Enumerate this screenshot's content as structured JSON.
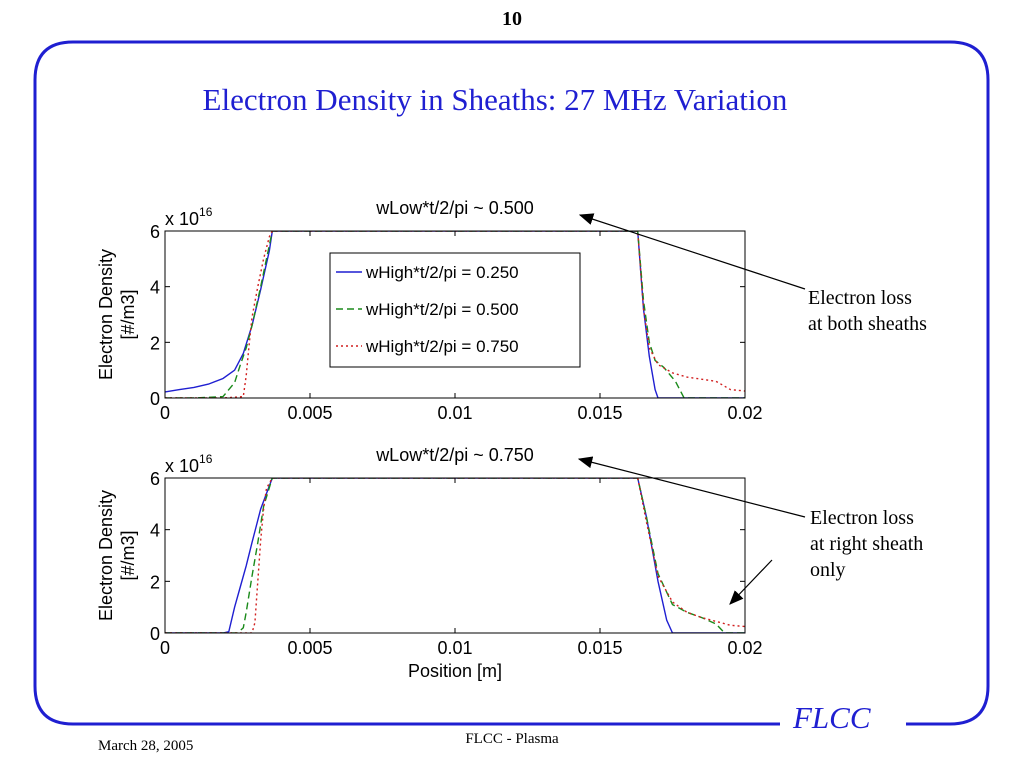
{
  "slide": {
    "page_number": "10",
    "title": "Electron Density in Sheaths: 27 MHz Variation",
    "footer_date": "March 28, 2005",
    "footer_center": "FLCC - Plasma",
    "brand": "FLCC",
    "frame_color": "#1f1fd1",
    "annotations": {
      "top_line1": "Electron loss",
      "top_line2": "at both sheaths",
      "bottom_line1": "Electron loss",
      "bottom_line2": "at right sheath",
      "bottom_line3": "only"
    }
  },
  "chart_data": [
    {
      "type": "line",
      "title": "wLow*t/2/pi ~ 0.500",
      "xlabel": "",
      "ylabel": "Electron Density [#/m3]",
      "y_multiplier": "x 10",
      "y_multiplier_exp": "16",
      "xlim": [
        0,
        0.02
      ],
      "ylim": [
        0,
        6
      ],
      "xticks": [
        "0",
        "0.005",
        "0.01",
        "0.015",
        "0.02"
      ],
      "yticks": [
        "0",
        "2",
        "4",
        "6"
      ],
      "legend_position": "top-center",
      "series": [
        {
          "name": "wHigh*t/2/pi = 0.250",
          "color": "#1f1fd1",
          "style": "solid",
          "x": [
            0,
            0.0005,
            0.001,
            0.0015,
            0.002,
            0.0024,
            0.0027,
            0.003,
            0.0033,
            0.0036,
            0.0037,
            0.0163,
            0.0165,
            0.0167,
            0.0169,
            0.017,
            0.02
          ],
          "y": [
            0.22,
            0.3,
            0.38,
            0.5,
            0.7,
            1.0,
            1.6,
            2.6,
            3.9,
            5.3,
            6,
            6,
            3.2,
            1.5,
            0.3,
            0,
            0
          ]
        },
        {
          "name": "wHigh*t/2/pi = 0.500",
          "color": "#1a8a1a",
          "style": "dashed",
          "x": [
            0,
            0.001,
            0.002,
            0.0024,
            0.0026,
            0.0028,
            0.003,
            0.0033,
            0.0036,
            0.0037,
            0.0163,
            0.0165,
            0.0167,
            0.0169,
            0.0172,
            0.0176,
            0.0179,
            0.02
          ],
          "y": [
            0,
            0,
            0.05,
            0.55,
            1.2,
            1.8,
            2.6,
            4.0,
            5.5,
            6,
            6,
            3.5,
            2.0,
            1.35,
            1.1,
            0.6,
            0,
            0
          ]
        },
        {
          "name": "wHigh*t/2/pi = 0.750",
          "color": "#d11f1f",
          "style": "dotted",
          "x": [
            0,
            0.002,
            0.0027,
            0.0028,
            0.0029,
            0.003,
            0.0032,
            0.0034,
            0.0036,
            0.0037,
            0.0163,
            0.0165,
            0.0167,
            0.017,
            0.0175,
            0.018,
            0.019,
            0.0195,
            0.02
          ],
          "y": [
            0,
            0,
            0.05,
            0.8,
            1.9,
            2.9,
            4.0,
            5.0,
            5.8,
            6,
            6,
            3.2,
            1.8,
            1.2,
            0.9,
            0.75,
            0.6,
            0.3,
            0.25
          ]
        }
      ]
    },
    {
      "type": "line",
      "title": "wLow*t/2/pi ~ 0.750",
      "xlabel": "Position [m]",
      "ylabel": "Electron Density [#/m3]",
      "y_multiplier": "x 10",
      "y_multiplier_exp": "16",
      "xlim": [
        0,
        0.02
      ],
      "ylim": [
        0,
        6
      ],
      "xticks": [
        "0",
        "0.005",
        "0.01",
        "0.015",
        "0.02"
      ],
      "yticks": [
        "0",
        "2",
        "4",
        "6"
      ],
      "series": [
        {
          "name": "wHigh*t/2/pi = 0.250",
          "color": "#1f1fd1",
          "style": "solid",
          "x": [
            0,
            0.002,
            0.0022,
            0.0024,
            0.0026,
            0.0028,
            0.003,
            0.0033,
            0.0037,
            0.0163,
            0.0166,
            0.017,
            0.0173,
            0.0175,
            0.02
          ],
          "y": [
            0,
            0,
            0.05,
            1.0,
            1.8,
            2.6,
            3.5,
            4.8,
            6,
            6,
            4.5,
            2.0,
            0.5,
            0,
            0
          ]
        },
        {
          "name": "wHigh*t/2/pi = 0.500",
          "color": "#1a8a1a",
          "style": "dashed",
          "x": [
            0,
            0.0025,
            0.0027,
            0.0028,
            0.003,
            0.0032,
            0.0034,
            0.0037,
            0.0163,
            0.0166,
            0.017,
            0.0175,
            0.018,
            0.0185,
            0.019,
            0.0193,
            0.02
          ],
          "y": [
            0,
            0,
            0.2,
            0.8,
            2.2,
            3.5,
            4.9,
            6,
            6,
            4.5,
            2.3,
            1.1,
            0.8,
            0.6,
            0.35,
            0,
            0
          ]
        },
        {
          "name": "wHigh*t/2/pi = 0.750",
          "color": "#d11f1f",
          "style": "dotted",
          "x": [
            0,
            0.003,
            0.0031,
            0.0032,
            0.0033,
            0.0034,
            0.0035,
            0.0037,
            0.0163,
            0.0166,
            0.017,
            0.0175,
            0.018,
            0.0185,
            0.019,
            0.0195,
            0.02
          ],
          "y": [
            0,
            0,
            0.4,
            2.0,
            3.6,
            4.8,
            5.6,
            6,
            6,
            4.3,
            2.2,
            1.2,
            0.8,
            0.6,
            0.45,
            0.3,
            0.25
          ]
        }
      ]
    }
  ]
}
